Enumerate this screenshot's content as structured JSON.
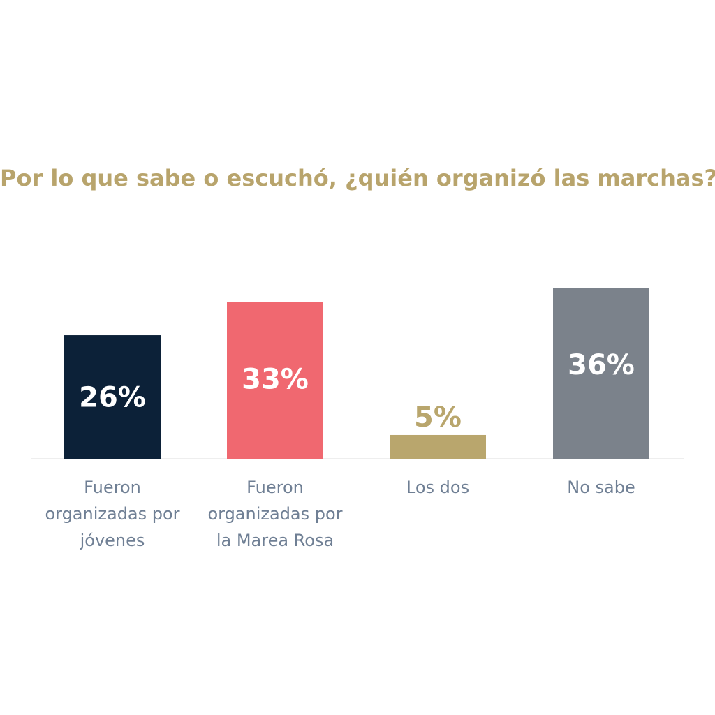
{
  "chart_data": {
    "type": "bar",
    "title": "Por lo que sabe o escuchó, ¿quién organizó las marchas?",
    "categories": [
      "Fueron organizadas por jóvenes",
      "Fueron organizadas por la Marea Rosa",
      "Los dos",
      "No sabe"
    ],
    "category_lines": [
      [
        "Fueron",
        "organizadas por",
        "jóvenes"
      ],
      [
        "Fueron",
        "organizadas por",
        "la Marea Rosa"
      ],
      [
        "Los dos"
      ],
      [
        "No sabe"
      ]
    ],
    "values": [
      26,
      33,
      5,
      36
    ],
    "value_labels": [
      "26%",
      "33%",
      "5%",
      "36%"
    ],
    "bar_colors": [
      "#0c2138",
      "#f06870",
      "#b9a66d",
      "#7b828b"
    ],
    "value_label_colors": [
      "#ffffff",
      "#ffffff",
      "#b9a66d",
      "#ffffff"
    ],
    "value_label_position": [
      "inside",
      "inside",
      "above",
      "inside"
    ],
    "ylim": [
      0,
      36
    ],
    "grid": false,
    "legend": "none",
    "xlabel": "",
    "ylabel": ""
  }
}
